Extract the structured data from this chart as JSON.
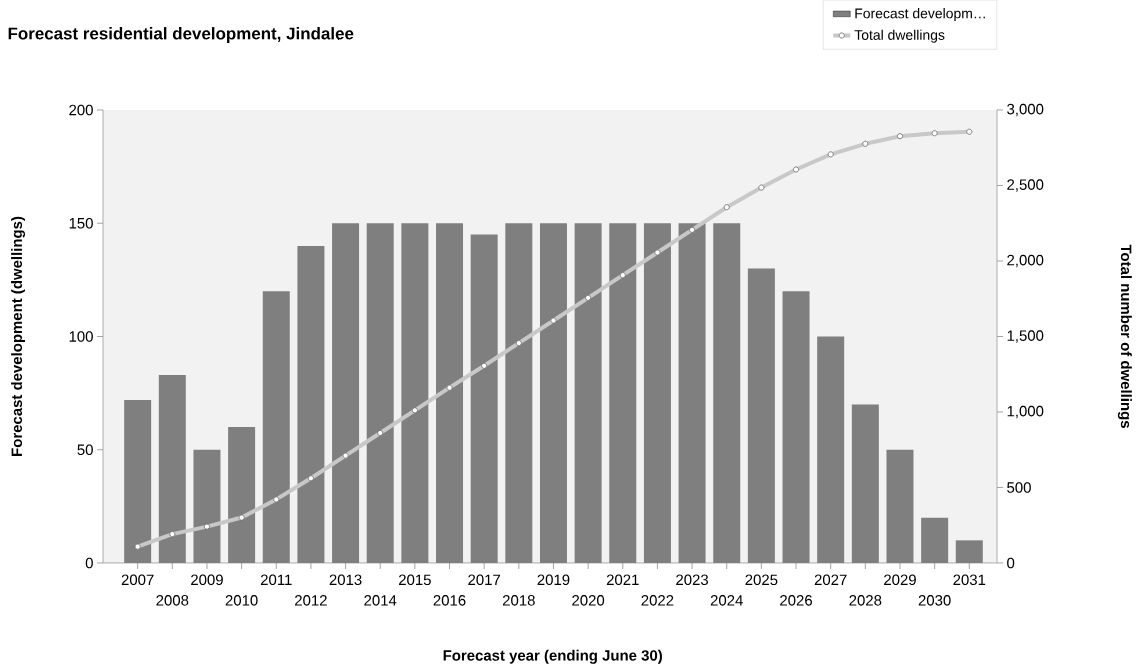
{
  "chart_data": {
    "type": "bar",
    "title": "Forecast residential development, Jindalee",
    "xlabel": "Forecast year (ending June 30)",
    "ylabel": "Forecast development (dwellings)",
    "y2label": "Total number of dwellings",
    "categories": [
      "2007",
      "2008",
      "2009",
      "2010",
      "2011",
      "2012",
      "2013",
      "2014",
      "2015",
      "2016",
      "2017",
      "2018",
      "2019",
      "2020",
      "2021",
      "2022",
      "2023",
      "2024",
      "2025",
      "2026",
      "2027",
      "2028",
      "2029",
      "2030",
      "2031"
    ],
    "series": [
      {
        "name": "Forecast developm…",
        "color": "#7f7f7f",
        "values": [
          72,
          83,
          50,
          60,
          120,
          140,
          150,
          150,
          150,
          150,
          145,
          150,
          150,
          150,
          150,
          150,
          150,
          150,
          130,
          120,
          100,
          70,
          50,
          20,
          10
        ]
      },
      {
        "name": "Total dwellings",
        "type": "line",
        "axis": "y2",
        "color": "#c8c8c8",
        "marker": "circle",
        "values": [
          108,
          191,
          241,
          301,
          421,
          561,
          711,
          861,
          1011,
          1161,
          1306,
          1456,
          1606,
          1756,
          1906,
          2056,
          2206,
          2356,
          2486,
          2606,
          2706,
          2776,
          2826,
          2846,
          2856
        ]
      }
    ],
    "ylim": [
      0,
      200
    ],
    "yticks": [
      0,
      50,
      100,
      150,
      200
    ],
    "y2lim": [
      0,
      3000
    ],
    "y2ticks": [
      0,
      500,
      {
        "value": 1000,
        "label": "1,000"
      },
      {
        "value": 1500,
        "label": "1,500"
      },
      {
        "value": 2000,
        "label": "2,000"
      },
      {
        "value": 2500,
        "label": "2,500"
      },
      {
        "value": 3000,
        "label": "3,000"
      }
    ],
    "legend": "top right",
    "grid": false
  }
}
